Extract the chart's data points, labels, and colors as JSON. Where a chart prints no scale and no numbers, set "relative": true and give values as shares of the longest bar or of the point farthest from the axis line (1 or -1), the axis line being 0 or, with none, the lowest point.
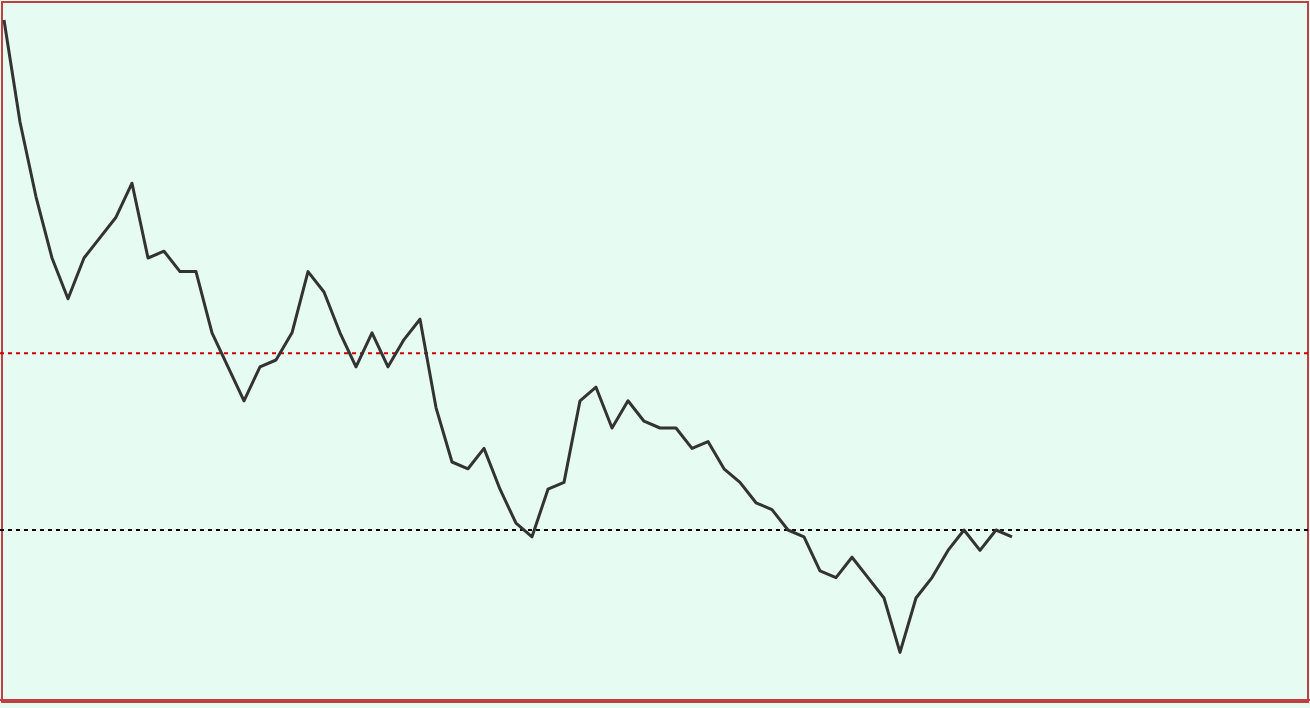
{
  "chart_data": {
    "type": "line",
    "relative": true,
    "categories": [
      null,
      null,
      null,
      null,
      null,
      null,
      null,
      null,
      null,
      null,
      null,
      null,
      null,
      null,
      null,
      null,
      null,
      null,
      null,
      null,
      null,
      null,
      null,
      null,
      null,
      null,
      null,
      null,
      null,
      null,
      null,
      null,
      null,
      null,
      null,
      null,
      null,
      null,
      null,
      null,
      null,
      null,
      null,
      null,
      null,
      null,
      null,
      null,
      null,
      null,
      null,
      null,
      null,
      null,
      null,
      null,
      null,
      null,
      null,
      null,
      null,
      null,
      null,
      null,
      null,
      null,
      null,
      null,
      null,
      null,
      null,
      null,
      null,
      null,
      null,
      null,
      null,
      null,
      null,
      null,
      null,
      null
    ],
    "series": [
      {
        "color": "#333333",
        "values": [
          1.0,
          0.85,
          0.74,
          0.65,
          0.59,
          0.65,
          0.68,
          0.71,
          0.76,
          0.65,
          0.66,
          0.63,
          0.63,
          0.54,
          0.49,
          0.44,
          0.49,
          0.5,
          0.54,
          0.63,
          0.6,
          0.54,
          0.49,
          0.54,
          0.49,
          0.53,
          0.56,
          0.43,
          0.35,
          0.34,
          0.37,
          0.31,
          0.26,
          0.24,
          0.31,
          0.32,
          0.44,
          0.46,
          0.4,
          0.44,
          0.41,
          0.4,
          0.4,
          0.37,
          0.38,
          0.34,
          0.32,
          0.29,
          0.28,
          0.25,
          0.24,
          0.19,
          0.18,
          0.21,
          0.18,
          0.15,
          0.07,
          0.15,
          0.18,
          0.22,
          0.25,
          0.22,
          0.25,
          0.24,
          null,
          null,
          null,
          null,
          null,
          null,
          null,
          null,
          null,
          null,
          null,
          null,
          null,
          null,
          null,
          null,
          null,
          null
        ]
      }
    ],
    "ref_lines": [
      {
        "axis": "y",
        "value": 0.51,
        "color": "#cc0000",
        "line_style": "dotted"
      },
      {
        "axis": "y",
        "value": 0.25,
        "color": "#000000",
        "line_style": "dotted"
      }
    ],
    "marker": "none",
    "line_style": "solid"
  }
}
